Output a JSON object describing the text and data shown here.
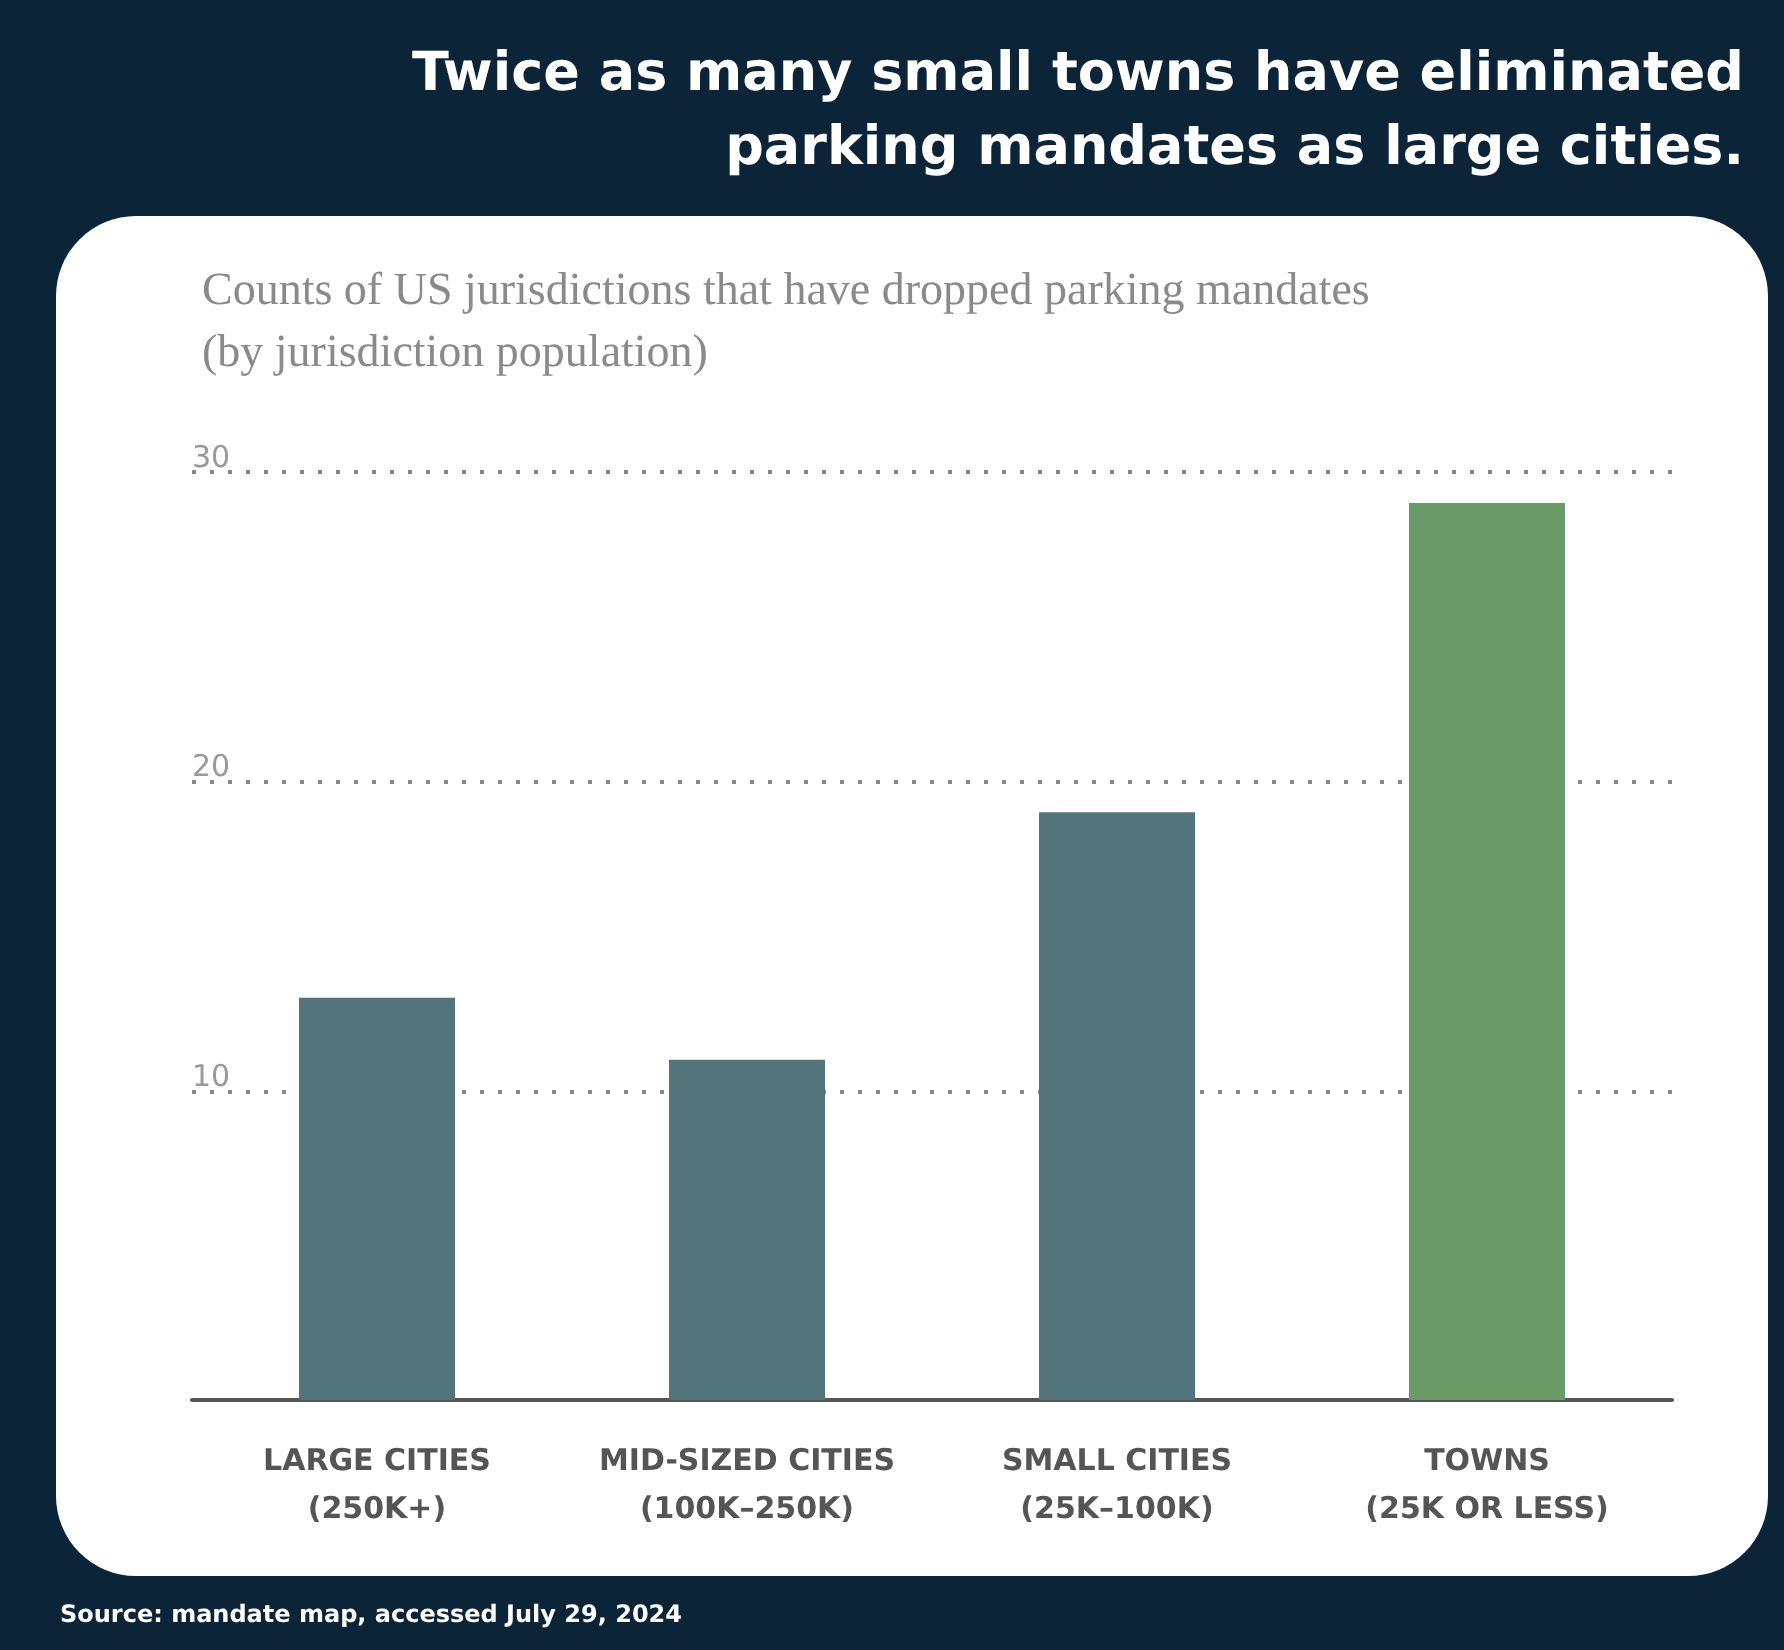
{
  "chart_data": {
    "type": "bar",
    "title": "Twice as many small towns have eliminated parking mandates as large cities.",
    "subtitle": "Counts of US jurisdictions that have dropped parking mandates\n(by jurisdiction population)",
    "categories": [
      "LARGE CITIES\n(250K+)",
      "MID-SIZED CITIES\n(100K–250K)",
      "SMALL CITIES\n(25K–100K)",
      "TOWNS\n(25K OR LESS)"
    ],
    "values": [
      13,
      11,
      19,
      29
    ],
    "colors": [
      "#53747a",
      "#53747a",
      "#53747a",
      "#6b9a69"
    ],
    "ylim": [
      0,
      30
    ],
    "yticks": [
      10,
      20,
      30
    ],
    "grid": "y",
    "annotations": [
      "Source: mandate map, accessed July 29, 2024"
    ]
  }
}
